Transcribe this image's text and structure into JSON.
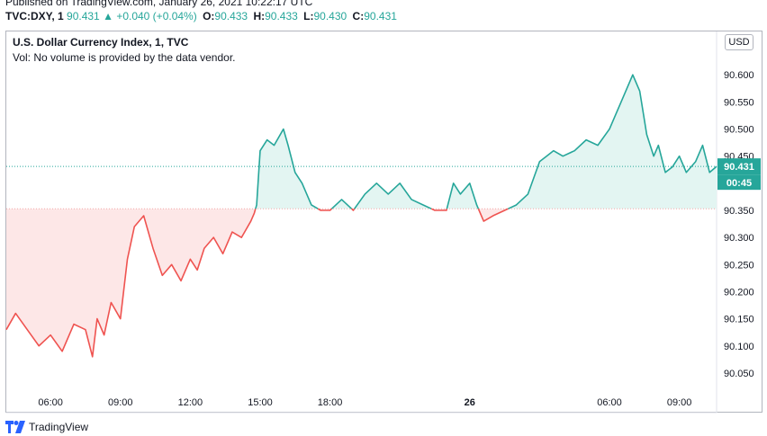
{
  "header": {
    "published": "Published on TradingView.com, January 26, 2021 10:22:17 UTC",
    "symbol": "TVC:DXY, 1",
    "last": "90.431",
    "change": "+0.040 (+0.04%)",
    "open_label": "O:",
    "open": "90.433",
    "high_label": "H:",
    "high": "90.433",
    "low_label": "L:",
    "low": "90.430",
    "close_label": "C:",
    "close": "90.431"
  },
  "chart_title": "U.S. Dollar Currency Index, 1, TVC",
  "volume_note": "Vol: No volume is provided by the data vendor.",
  "currency_button": "USD",
  "price_tag": "90.431",
  "countdown_tag": "00:45",
  "footer": {
    "brand": "TradingView"
  },
  "colors": {
    "up": "#26a69a",
    "down": "#ef5350",
    "up_fill": "#e3f5f2",
    "down_fill": "#fde7e7"
  },
  "chart_data": {
    "type": "area",
    "baseline": 90.353,
    "last_price": 90.431,
    "ylim": [
      90.02,
      90.68
    ],
    "y_ticks": [
      "90.600",
      "90.550",
      "90.500",
      "90.450",
      "90.400",
      "90.350",
      "90.300",
      "90.250",
      "90.200",
      "90.150",
      "90.100",
      "90.050"
    ],
    "x_ticks": [
      "06:00",
      "09:00",
      "12:00",
      "15:00",
      "18:00",
      "26",
      "06:00",
      "09:00"
    ],
    "x_tick_hours": [
      6,
      9,
      12,
      15,
      18,
      24,
      30,
      33
    ],
    "xlim_hours": [
      4.1,
      34.6
    ],
    "grid": false,
    "series": [
      {
        "x": [
          4.1,
          4.5,
          5.0,
          5.5,
          6.0,
          6.5,
          7.0,
          7.5,
          7.8,
          8.0,
          8.3,
          8.6,
          9.0,
          9.3,
          9.6,
          10.0,
          10.4,
          10.8,
          11.2,
          11.6,
          12.0,
          12.3,
          12.6,
          13.0,
          13.4,
          13.8,
          14.2,
          14.6,
          14.75,
          14.85,
          15.0,
          15.3,
          15.6,
          16.0,
          16.2,
          16.5,
          16.8,
          17.2,
          17.6,
          18.0,
          18.5,
          19.0,
          19.5,
          20.0,
          20.5,
          21.0,
          21.5,
          22.0,
          22.5,
          23.0,
          23.3,
          23.6,
          24.0,
          24.3,
          24.6,
          25.0,
          25.5,
          26.0,
          26.5,
          27.0,
          27.3,
          27.6,
          28.0,
          28.5,
          29.0,
          29.5,
          30.0,
          30.5,
          31.0,
          31.3,
          31.6,
          31.9,
          32.1,
          32.4,
          32.7,
          33.0,
          33.3,
          33.7,
          34.0,
          34.3,
          34.6
        ],
        "y": [
          90.13,
          90.16,
          90.13,
          90.1,
          90.12,
          90.09,
          90.14,
          90.13,
          90.08,
          90.15,
          90.12,
          90.18,
          90.15,
          90.26,
          90.32,
          90.34,
          90.28,
          90.23,
          90.25,
          90.22,
          90.26,
          90.24,
          90.28,
          90.3,
          90.27,
          90.31,
          90.3,
          90.33,
          90.345,
          90.36,
          90.46,
          90.48,
          90.47,
          90.5,
          90.47,
          90.42,
          90.4,
          90.36,
          90.35,
          90.35,
          90.37,
          90.35,
          90.38,
          90.4,
          90.38,
          90.4,
          90.37,
          90.36,
          90.35,
          90.35,
          90.4,
          90.38,
          90.4,
          90.36,
          90.33,
          90.34,
          90.35,
          90.36,
          90.38,
          90.44,
          90.45,
          90.46,
          90.45,
          90.46,
          90.48,
          90.47,
          90.5,
          90.55,
          90.6,
          90.57,
          90.49,
          90.45,
          90.47,
          90.42,
          90.43,
          90.45,
          90.42,
          90.44,
          90.47,
          90.42,
          90.431
        ]
      }
    ]
  }
}
